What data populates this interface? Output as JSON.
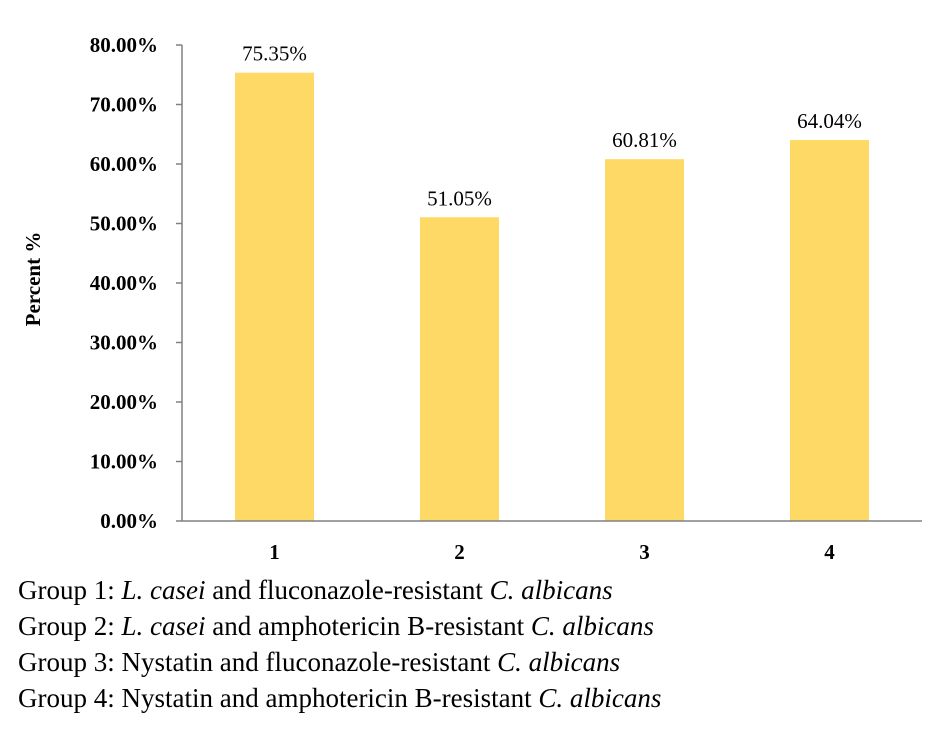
{
  "chart_data": {
    "type": "bar",
    "categories": [
      "1",
      "2",
      "3",
      "4"
    ],
    "values": [
      75.35,
      51.05,
      60.81,
      64.04
    ],
    "data_labels": [
      "75.35%",
      "51.05%",
      "60.81%",
      "64.04%"
    ],
    "ylabel": "Percent %",
    "ylim": [
      0,
      80
    ],
    "yticks": [
      0,
      10,
      20,
      30,
      40,
      50,
      60,
      70,
      80
    ],
    "ytick_labels": [
      "0.00%",
      "10.00%",
      "20.00%",
      "30.00%",
      "40.00%",
      "50.00%",
      "60.00%",
      "70.00%",
      "80.00%"
    ],
    "bar_color": "#FFD966",
    "grid": false
  },
  "legend": [
    {
      "segments": [
        {
          "text": "Group 1: ",
          "italic": false
        },
        {
          "text": "L. casei",
          "italic": true
        },
        {
          "text": " and fluconazole-resistant ",
          "italic": false
        },
        {
          "text": "C. albicans",
          "italic": true
        }
      ]
    },
    {
      "segments": [
        {
          "text": "Group 2: ",
          "italic": false
        },
        {
          "text": "L. casei",
          "italic": true
        },
        {
          "text": " and amphotericin B-resistant ",
          "italic": false
        },
        {
          "text": "C. albicans",
          "italic": true
        }
      ]
    },
    {
      "segments": [
        {
          "text": "Group 3: Nystatin and fluconazole-resistant ",
          "italic": false
        },
        {
          "text": "C. albicans",
          "italic": true
        }
      ]
    },
    {
      "segments": [
        {
          "text": "Group 4: Nystatin and amphotericin B-resistant ",
          "italic": false
        },
        {
          "text": "C. albicans",
          "italic": true
        }
      ]
    }
  ]
}
